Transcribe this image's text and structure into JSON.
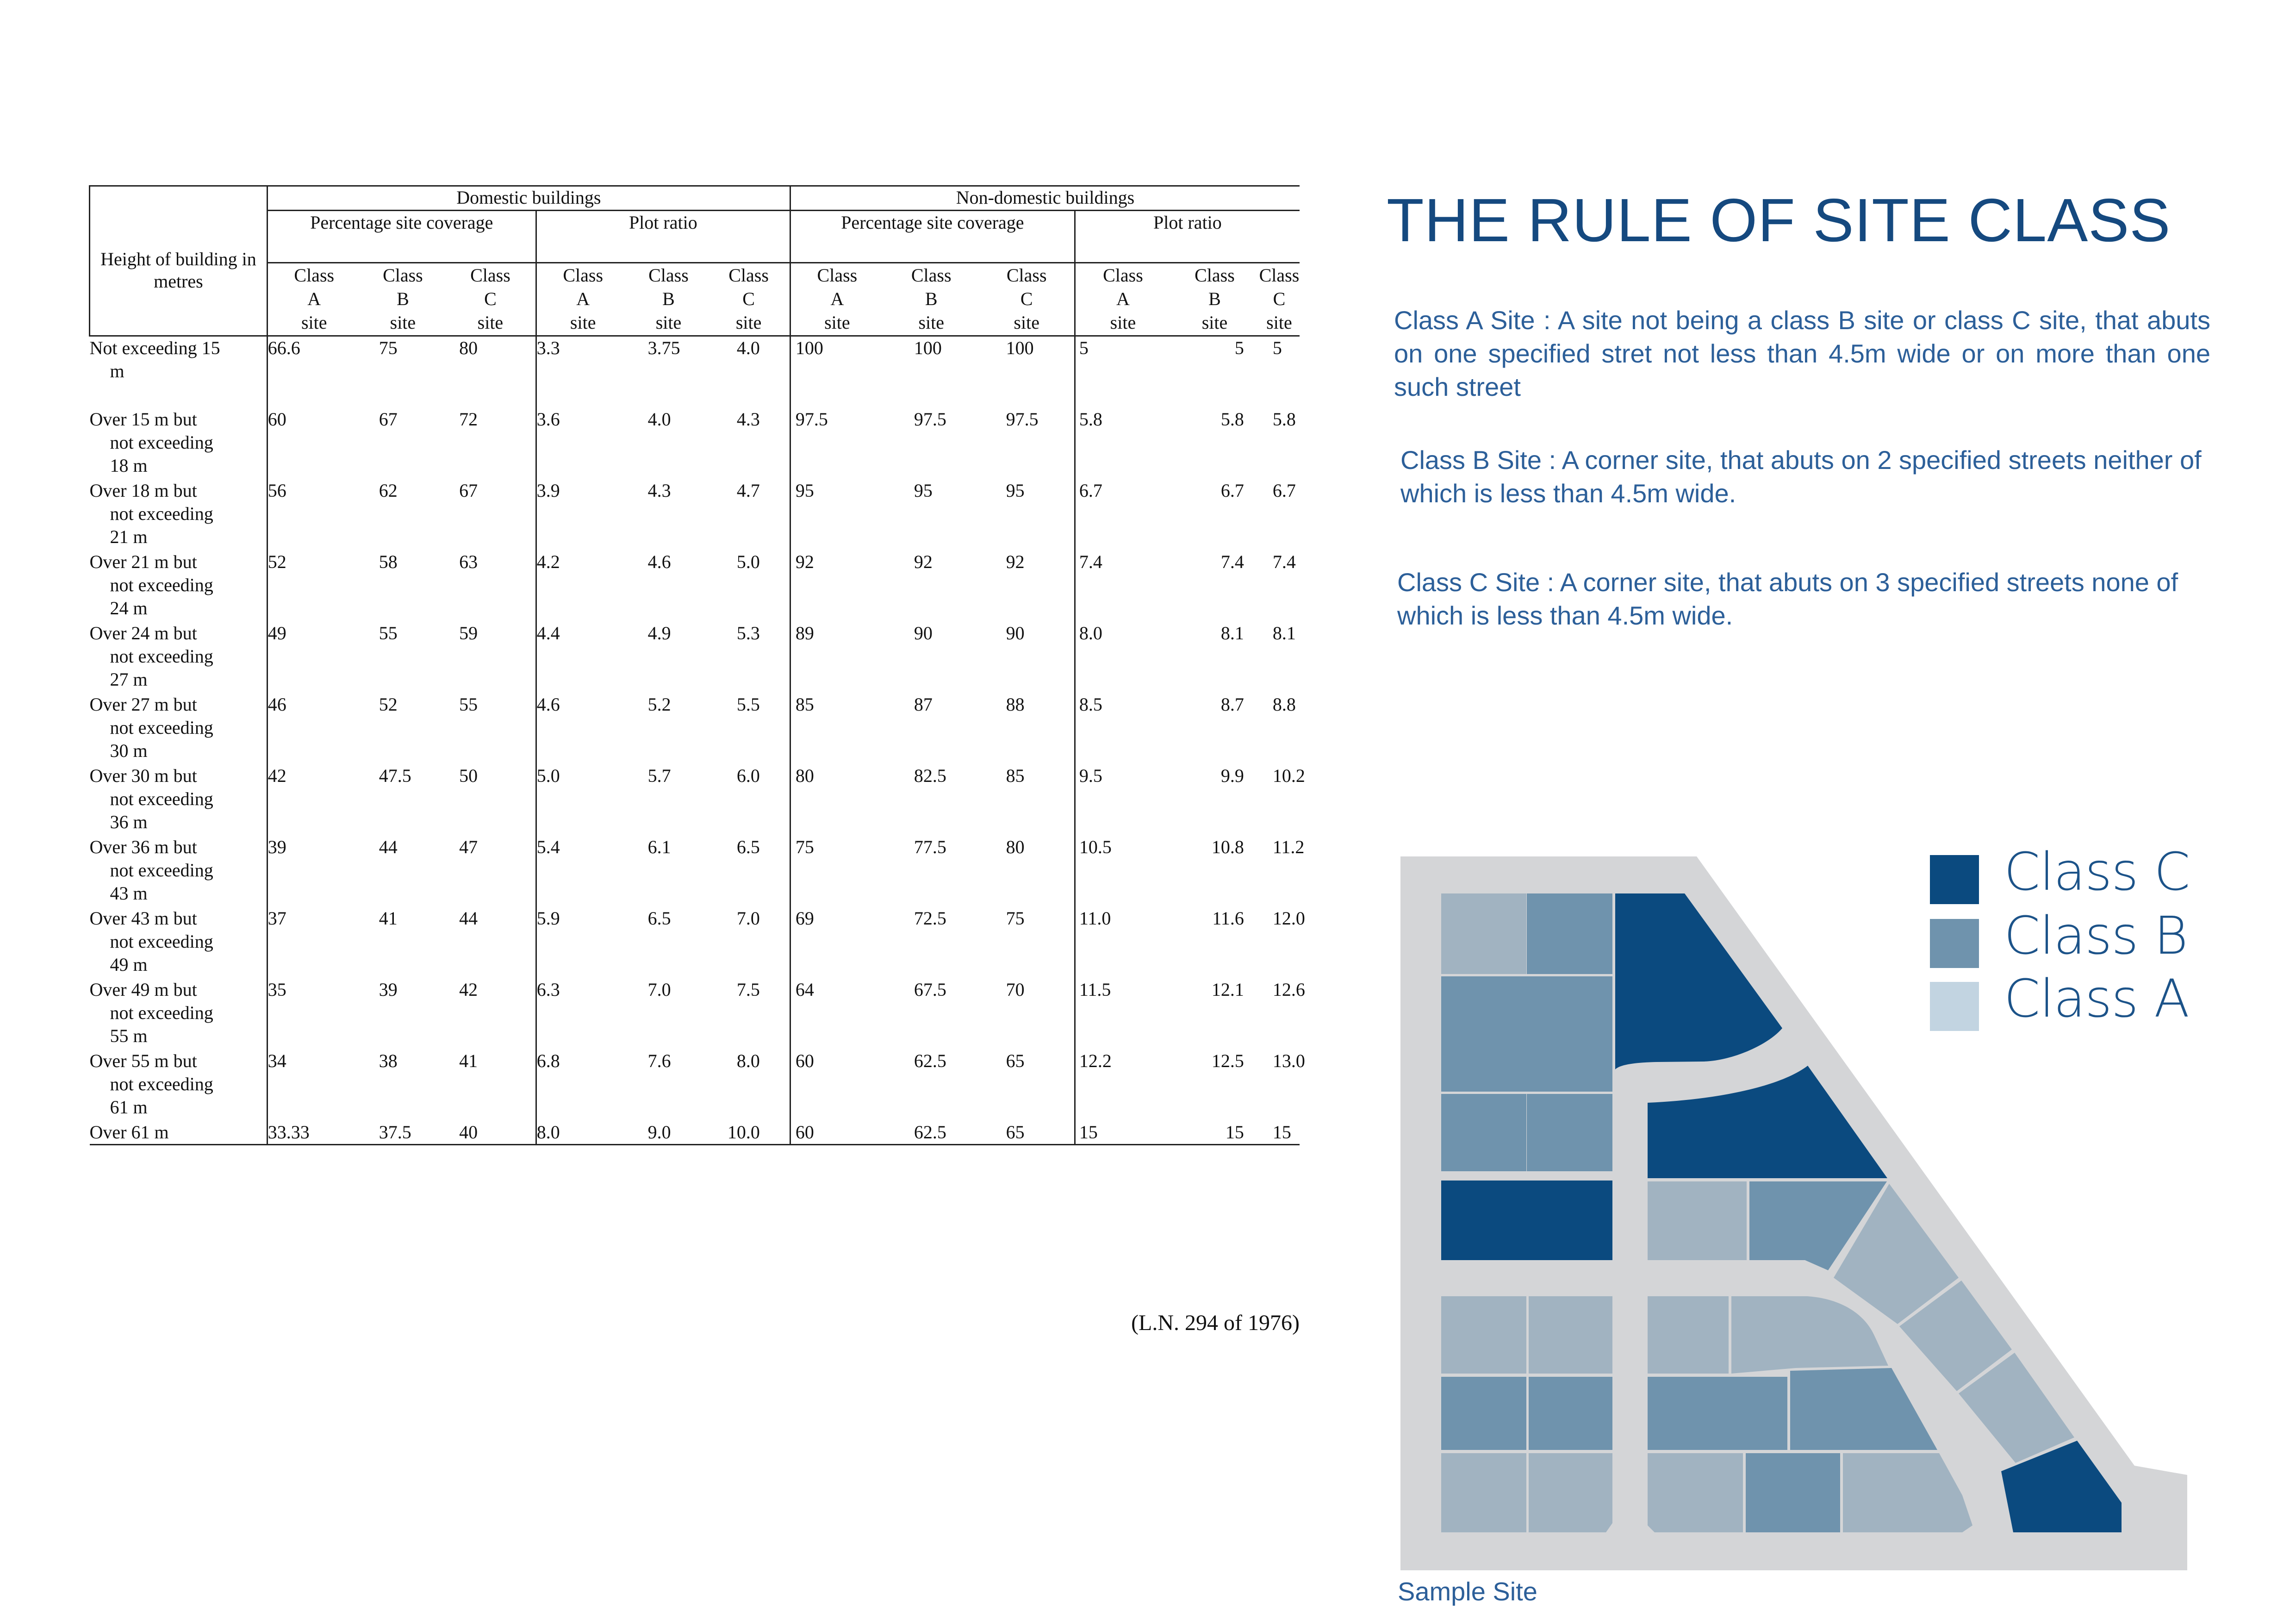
{
  "colors": {
    "class_c": "#0b4a7f",
    "class_b": "#6f93ad",
    "class_a": "#a1b3c1",
    "legend_a": "#c2d4e1",
    "road": "#d4d5d7",
    "title": "#15497f"
  },
  "table": {
    "height_header": "Height of building in metres",
    "groups": [
      "Domestic buildings",
      "Non-domestic buildings"
    ],
    "subgroups": [
      "Percentage site coverage",
      "Plot ratio",
      "Percentage site coverage",
      "Plot ratio"
    ],
    "class_headers": [
      "Class A site",
      "Class B site",
      "Class C site",
      "Class A site",
      "Class B site",
      "Class C site",
      "Class A site",
      "Class B site",
      "Class C site",
      "Class A site",
      "Class B site",
      "Class C site"
    ],
    "rows": [
      {
        "label": [
          "Not exceeding 15",
          "m"
        ],
        "values": [
          "66.6",
          "75",
          "80",
          "3.3",
          "3.75",
          "4.0",
          "100",
          "100",
          "100",
          "5",
          "5",
          "5"
        ]
      },
      {
        "label": [
          "Over 15 m but",
          "not exceeding",
          "18 m"
        ],
        "values": [
          "60",
          "67",
          "72",
          "3.6",
          "4.0",
          "4.3",
          "97.5",
          "97.5",
          "97.5",
          "5.8",
          "5.8",
          "5.8"
        ]
      },
      {
        "label": [
          "Over 18 m but",
          "not exceeding",
          "21 m"
        ],
        "values": [
          "56",
          "62",
          "67",
          "3.9",
          "4.3",
          "4.7",
          "95",
          "95",
          "95",
          "6.7",
          "6.7",
          "6.7"
        ]
      },
      {
        "label": [
          "Over 21 m but",
          "not exceeding",
          "24 m"
        ],
        "values": [
          "52",
          "58",
          "63",
          "4.2",
          "4.6",
          "5.0",
          "92",
          "92",
          "92",
          "7.4",
          "7.4",
          "7.4"
        ]
      },
      {
        "label": [
          "Over 24 m but",
          "not exceeding",
          "27 m"
        ],
        "values": [
          "49",
          "55",
          "59",
          "4.4",
          "4.9",
          "5.3",
          "89",
          "90",
          "90",
          "8.0",
          "8.1",
          "8.1"
        ]
      },
      {
        "label": [
          "Over 27 m but",
          "not exceeding",
          "30 m"
        ],
        "values": [
          "46",
          "52",
          "55",
          "4.6",
          "5.2",
          "5.5",
          "85",
          "87",
          "88",
          "8.5",
          "8.7",
          "8.8"
        ]
      },
      {
        "label": [
          "Over 30 m but",
          "not exceeding",
          "36 m"
        ],
        "values": [
          "42",
          "47.5",
          "50",
          "5.0",
          "5.7",
          "6.0",
          "80",
          "82.5",
          "85",
          "9.5",
          "9.9",
          "10.2"
        ]
      },
      {
        "label": [
          "Over 36 m but",
          "not exceeding",
          "43 m"
        ],
        "values": [
          "39",
          "44",
          "47",
          "5.4",
          "6.1",
          "6.5",
          "75",
          "77.5",
          "80",
          "10.5",
          "10.8",
          "11.2"
        ]
      },
      {
        "label": [
          "Over 43 m but",
          "not exceeding",
          "49 m"
        ],
        "values": [
          "37",
          "41",
          "44",
          "5.9",
          "6.5",
          "7.0",
          "69",
          "72.5",
          "75",
          "11.0",
          "11.6",
          "12.0"
        ]
      },
      {
        "label": [
          "Over 49 m but",
          "not exceeding",
          "55 m"
        ],
        "values": [
          "35",
          "39",
          "42",
          "6.3",
          "7.0",
          "7.5",
          "64",
          "67.5",
          "70",
          "11.5",
          "12.1",
          "12.6"
        ]
      },
      {
        "label": [
          "Over 55 m but",
          "not exceeding",
          "61 m"
        ],
        "values": [
          "34",
          "38",
          "41",
          "6.8",
          "7.6",
          "8.0",
          "60",
          "62.5",
          "65",
          "12.2",
          "12.5",
          "13.0"
        ]
      },
      {
        "label": [
          "Over 61 m"
        ],
        "values": [
          "33.33",
          "37.5",
          "40",
          "8.0",
          "9.0",
          "10.0",
          "60",
          "62.5",
          "65",
          "15",
          "15",
          "15"
        ]
      }
    ],
    "source_note": "(L.N. 294 of 1976)"
  },
  "title": "THE RULE OF SITE CLASS",
  "descriptions": {
    "class_a": "Class A Site : A site not being a class B site or class C site, that abuts on one specified stret not less than 4.5m wide or on more than one such street",
    "class_b": "Class B Site : A  corner site, that abuts on 2 specified streets neither of which is less than 4.5m wide.",
    "class_c": "Class C Site : A  corner site, that abuts on 3 specified streets none of which is less than 4.5m wide."
  },
  "legend": [
    {
      "label": "Class C",
      "class": "class_c"
    },
    {
      "label": "Class B",
      "class": "class_b"
    },
    {
      "label": "Class A",
      "class": "class_a"
    }
  ],
  "map_caption": "Sample Site"
}
